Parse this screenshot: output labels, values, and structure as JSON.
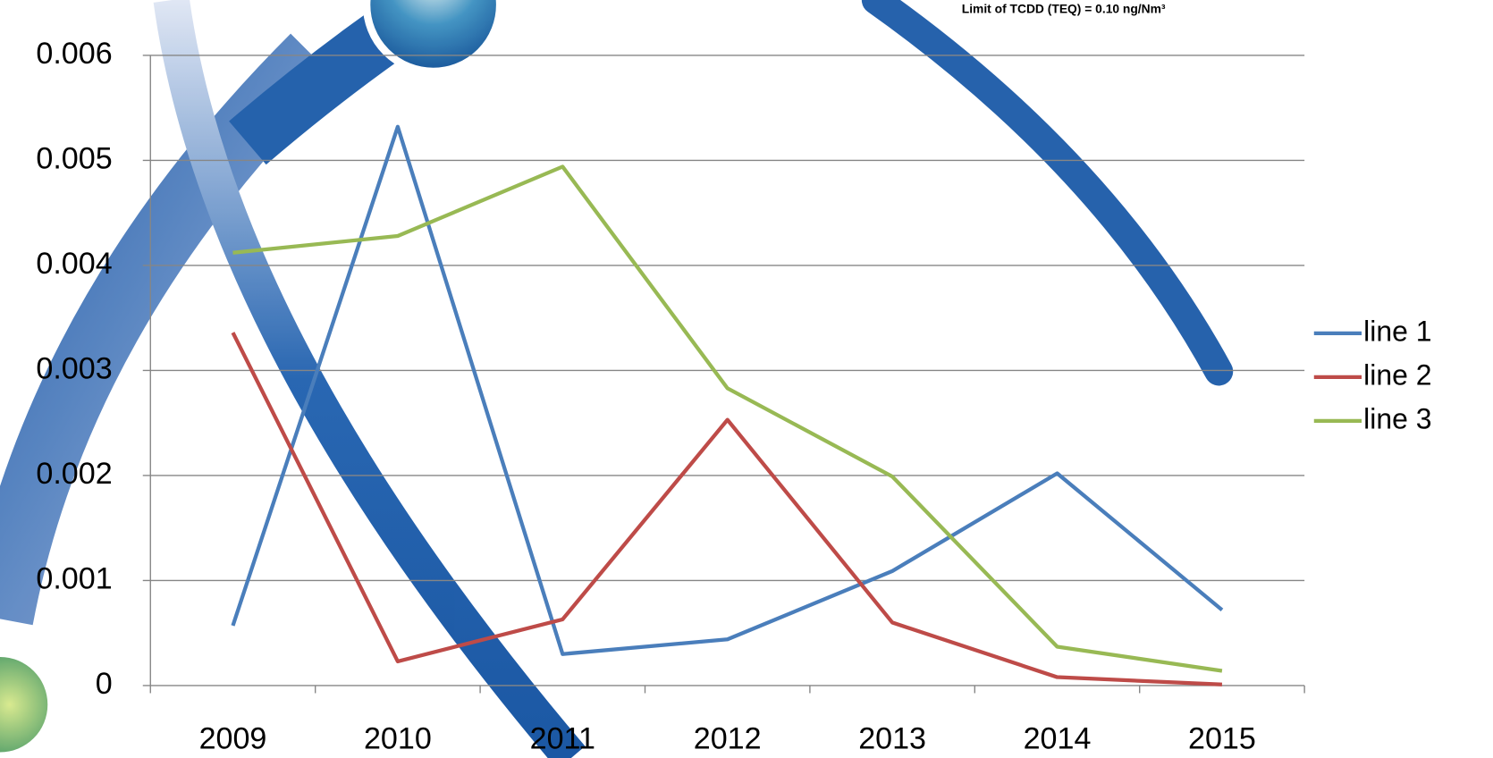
{
  "chart_data": {
    "type": "line",
    "annotation": "Limit of TCDD (TEQ) = 0.10 ng/Nm³",
    "categories": [
      "2009",
      "2010",
      "2011",
      "2012",
      "2013",
      "2014",
      "2015"
    ],
    "series": [
      {
        "name": "line 1",
        "color": "#4a7ebb",
        "values": [
          0.00057,
          0.00532,
          0.0003,
          0.00044,
          0.00109,
          0.00202,
          0.00072
        ]
      },
      {
        "name": "line 2",
        "color": "#be4b48",
        "values": [
          0.00336,
          0.00023,
          0.00063,
          0.00253,
          0.0006,
          8e-05,
          1e-05
        ]
      },
      {
        "name": "line 3",
        "color": "#98b954",
        "values": [
          0.00412,
          0.00428,
          0.00494,
          0.00283,
          0.00199,
          0.00037,
          0.00014
        ]
      }
    ],
    "ylim": [
      0,
      0.006
    ],
    "yticks": [
      0,
      0.001,
      0.002,
      0.003,
      0.004,
      0.005,
      0.006
    ],
    "grid": true,
    "legend": "right"
  }
}
